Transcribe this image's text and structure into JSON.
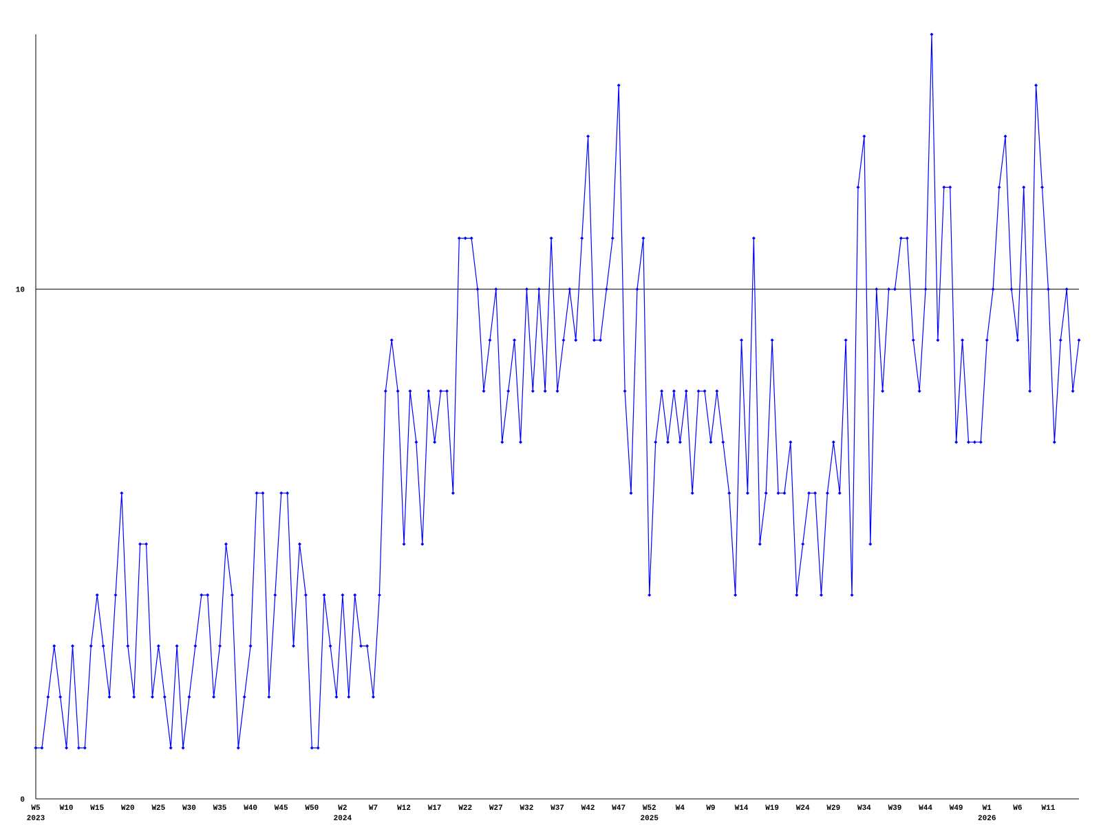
{
  "chart_data": {
    "type": "line",
    "categories": [
      "W5\n2023",
      null,
      null,
      null,
      null,
      "W10",
      null,
      null,
      null,
      null,
      "W15",
      null,
      null,
      null,
      null,
      "W20",
      null,
      null,
      null,
      null,
      "W25",
      null,
      null,
      null,
      null,
      "W30",
      null,
      null,
      null,
      null,
      "W35",
      null,
      null,
      null,
      null,
      "W40",
      null,
      null,
      null,
      null,
      "W45",
      null,
      null,
      null,
      null,
      "W50",
      null,
      null,
      null,
      null,
      "W2\n2024",
      null,
      null,
      null,
      null,
      "W7",
      null,
      null,
      null,
      null,
      "W12",
      null,
      null,
      null,
      null,
      "W17",
      null,
      null,
      null,
      null,
      "W22",
      null,
      null,
      null,
      null,
      "W27",
      null,
      null,
      null,
      null,
      "W32",
      null,
      null,
      null,
      null,
      "W37",
      null,
      null,
      null,
      null,
      "W42",
      null,
      null,
      null,
      null,
      "W47",
      null,
      null,
      null,
      null,
      "W52\n2025",
      null,
      null,
      null,
      null,
      "W4",
      null,
      null,
      null,
      null,
      "W9",
      null,
      null,
      null,
      null,
      "W14",
      null,
      null,
      null,
      null,
      "W19",
      null,
      null,
      null,
      null,
      "W24",
      null,
      null,
      null,
      null,
      "W29",
      null,
      null,
      null,
      null,
      "W34",
      null,
      null,
      null,
      null,
      "W39",
      null,
      null,
      null,
      null,
      "W44",
      null,
      null,
      null,
      null,
      "W49",
      null,
      null,
      null,
      null,
      "W1\n2026",
      null,
      null,
      null,
      null,
      "W6",
      null,
      null,
      null,
      null,
      "W11",
      null,
      null,
      null,
      null,
      null
    ],
    "series": [
      {
        "color": "#0000ff",
        "values": [
          1,
          1,
          2,
          3,
          2,
          1,
          3,
          1,
          1,
          3,
          4,
          3,
          2,
          4,
          6,
          3,
          2,
          5,
          5,
          2,
          3,
          2,
          1,
          3,
          1,
          2,
          3,
          4,
          4,
          2,
          3,
          5,
          4,
          1,
          2,
          3,
          6,
          6,
          2,
          4,
          6,
          6,
          3,
          5,
          4,
          1,
          1,
          4,
          3,
          2,
          4,
          2,
          4,
          3,
          3,
          2,
          4,
          8,
          9,
          8,
          5,
          8,
          7,
          5,
          8,
          7,
          8,
          8,
          6,
          11,
          11,
          11,
          10,
          8,
          9,
          10,
          7,
          8,
          9,
          7,
          10,
          8,
          10,
          8,
          11,
          8,
          9,
          10,
          9,
          11,
          13,
          9,
          9,
          10,
          11,
          14,
          8,
          6,
          10,
          11,
          4,
          7,
          8,
          7,
          8,
          7,
          8,
          6,
          8,
          8,
          7,
          8,
          7,
          6,
          4,
          9,
          6,
          11,
          5,
          6,
          9,
          6,
          6,
          7,
          4,
          5,
          6,
          6,
          4,
          6,
          7,
          6,
          9,
          4,
          12,
          13,
          5,
          10,
          8,
          10,
          10,
          11,
          11,
          9,
          8,
          10,
          15,
          9,
          12,
          12,
          7,
          9,
          7,
          7,
          7,
          9,
          10,
          12,
          13,
          10,
          9,
          12,
          8,
          14,
          12,
          10,
          7,
          9,
          10,
          8,
          9
        ]
      }
    ],
    "ylim": [
      0,
      15
    ],
    "yticks": [
      0,
      10
    ],
    "grid": true
  }
}
